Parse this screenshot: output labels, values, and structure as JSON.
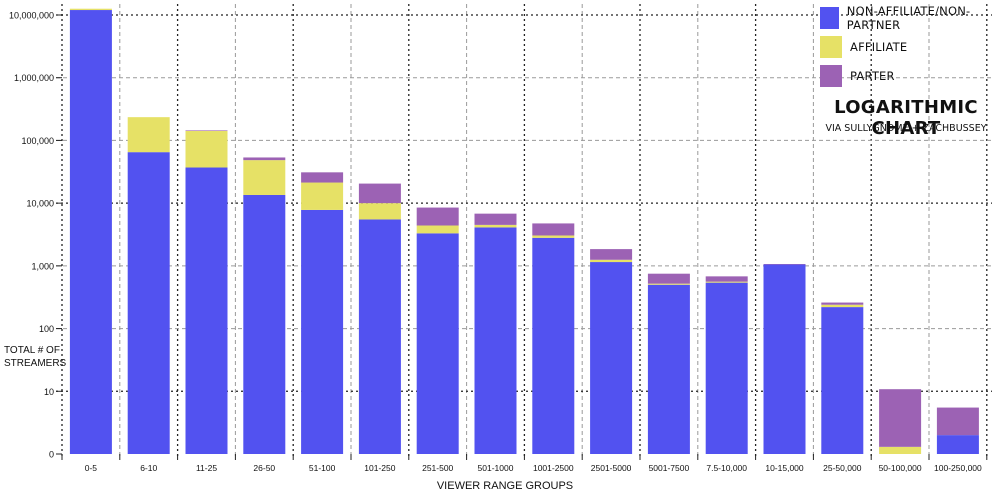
{
  "chart_data": {
    "type": "bar",
    "stacked": true,
    "scale": "log",
    "title": "LOGARITHMIC CHART",
    "subtitle": "VIA SULLYGNOME + ZACHBUSSEY",
    "xlabel": "VIEWER RANGE GROUPS",
    "ylabel": "TOTAL # OF STREAMERS",
    "ylim": [
      1,
      10000000
    ],
    "yticks": [
      {
        "value": 1,
        "label": "0"
      },
      {
        "value": 10,
        "label": "10"
      },
      {
        "value": 100,
        "label": "100"
      },
      {
        "value": 1000,
        "label": "1,000"
      },
      {
        "value": 10000,
        "label": "10,000"
      },
      {
        "value": 100000,
        "label": "100,000"
      },
      {
        "value": 1000000,
        "label": "1,000,000"
      },
      {
        "value": 10000000,
        "label": "10,000,000"
      }
    ],
    "grid": true,
    "legend_position": "top-right",
    "categories": [
      "0-5",
      "6-10",
      "11-25",
      "26-50",
      "51-100",
      "101-250",
      "251-500",
      "501-1000",
      "1001-2500",
      "2501-5000",
      "5001-7500",
      "7.5-10,000",
      "10-15,000",
      "25-50,000",
      "50-100,000",
      "100-250,000"
    ],
    "series": [
      {
        "name": "NON-AFFILIATE/NON-PARTNER",
        "color": "#5252f0",
        "values": [
          12000000,
          65000,
          37000,
          13500,
          7800,
          5500,
          3300,
          4100,
          2800,
          1150,
          500,
          540,
          1050,
          220,
          0,
          2
        ]
      },
      {
        "name": "AFFILIATE",
        "color": "#e6e166",
        "values": [
          600000,
          170000,
          105000,
          35000,
          13500,
          4500,
          1100,
          400,
          250,
          100,
          20,
          20,
          0,
          20,
          1.3,
          0
        ]
      },
      {
        "name": "PARTER",
        "color": "#9c62b4",
        "values": [
          0,
          0,
          3000,
          5000,
          9700,
          10500,
          4100,
          2300,
          1700,
          600,
          230,
          120,
          20,
          20,
          9.5,
          3.5
        ]
      }
    ]
  }
}
